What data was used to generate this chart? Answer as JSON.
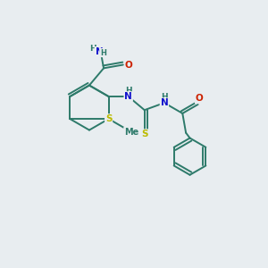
{
  "bg_color": "#e8edf0",
  "bond_color": "#2d7a6a",
  "bond_width": 1.4,
  "atom_colors": {
    "N": "#1010cc",
    "O": "#cc2200",
    "S": "#bbbb00",
    "C": "#2d7a6a",
    "H": "#2d7a6a"
  },
  "font_size": 7.5,
  "figsize": [
    3.0,
    3.0
  ],
  "dpi": 100
}
